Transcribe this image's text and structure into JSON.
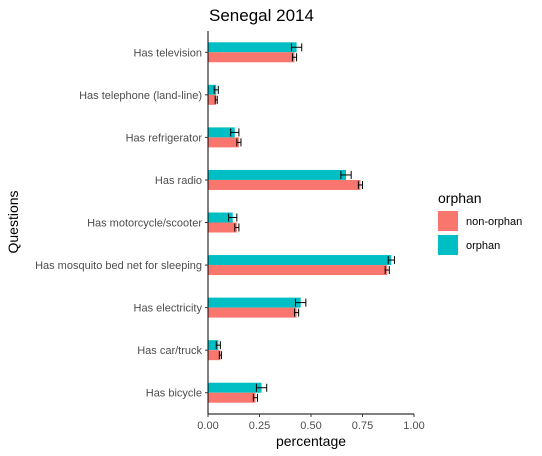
{
  "chart_data": {
    "type": "bar",
    "orientation": "horizontal",
    "title": "Senegal 2014",
    "xlabel": "percentage",
    "ylabel": "Questions",
    "xlim": [
      0,
      1
    ],
    "xticks": [
      "0.00",
      "0.25",
      "0.50",
      "0.75",
      "1.00"
    ],
    "grid": false,
    "legend": {
      "title": "orphan",
      "position": "right"
    },
    "categories": [
      "Has television",
      "Has telephone (land-line)",
      "Has refrigerator",
      "Has radio",
      "Has motorcycle/scooter",
      "Has mosquito bed net for sleeping",
      "Has electricity",
      "Has car/truck",
      "Has bicycle"
    ],
    "series": [
      {
        "name": "non-orphan",
        "color": "#F8766D",
        "values": [
          0.42,
          0.04,
          0.15,
          0.74,
          0.14,
          0.87,
          0.43,
          0.06,
          0.23
        ],
        "error": [
          0.01,
          0.005,
          0.01,
          0.01,
          0.01,
          0.01,
          0.01,
          0.005,
          0.01
        ]
      },
      {
        "name": "orphan",
        "color": "#00BFC4",
        "values": [
          0.43,
          0.04,
          0.13,
          0.67,
          0.12,
          0.89,
          0.45,
          0.05,
          0.26
        ],
        "error": [
          0.025,
          0.01,
          0.02,
          0.025,
          0.02,
          0.015,
          0.025,
          0.01,
          0.025
        ]
      }
    ]
  }
}
